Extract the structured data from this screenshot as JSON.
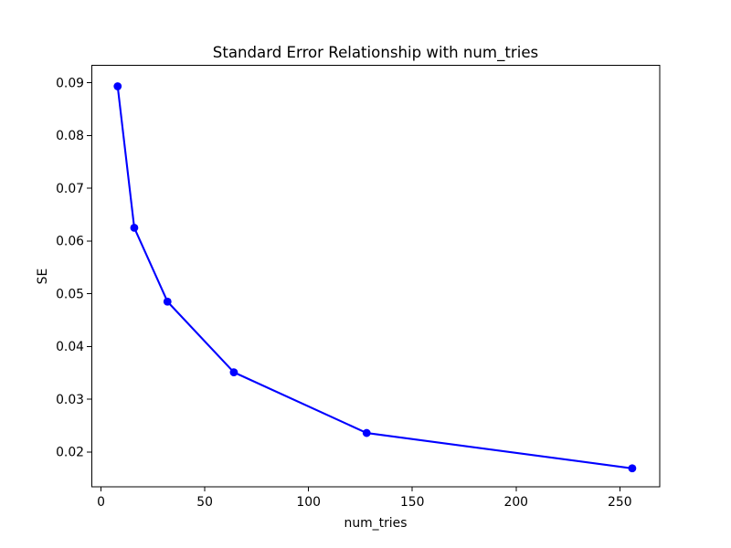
{
  "figure": {
    "title": "Standard Error Relationship with num_tries",
    "xlabel": "num_tries",
    "ylabel": "SE"
  },
  "chart_data": {
    "type": "line",
    "title": "Standard Error Relationship with num_tries",
    "xlabel": "num_tries",
    "ylabel": "SE",
    "x": [
      8,
      16,
      32,
      64,
      128,
      256
    ],
    "y": [
      0.0893,
      0.0625,
      0.0485,
      0.0351,
      0.0236,
      0.0169
    ],
    "series": [
      {
        "name": "SE",
        "x": [
          8,
          16,
          32,
          64,
          128,
          256
        ],
        "values": [
          0.0893,
          0.0625,
          0.0485,
          0.0351,
          0.0236,
          0.0169
        ]
      }
    ],
    "x_ticks": [
      0,
      50,
      100,
      150,
      200,
      250
    ],
    "x_tick_labels": [
      "0",
      "50",
      "100",
      "150",
      "200",
      "250"
    ],
    "y_ticks": [
      0.02,
      0.03,
      0.04,
      0.05,
      0.06,
      0.07,
      0.08,
      0.09
    ],
    "y_tick_labels": [
      "0.02",
      "0.03",
      "0.04",
      "0.05",
      "0.06",
      "0.07",
      "0.08",
      "0.09"
    ],
    "xlim": [
      -4.67,
      269.25
    ],
    "ylim": [
      0.0134,
      0.0932
    ],
    "line_color": "#0000ff",
    "marker": "o",
    "marker_color": "#0000ff",
    "grid": false,
    "legend_position": "none",
    "background_color": "#ffffff"
  }
}
